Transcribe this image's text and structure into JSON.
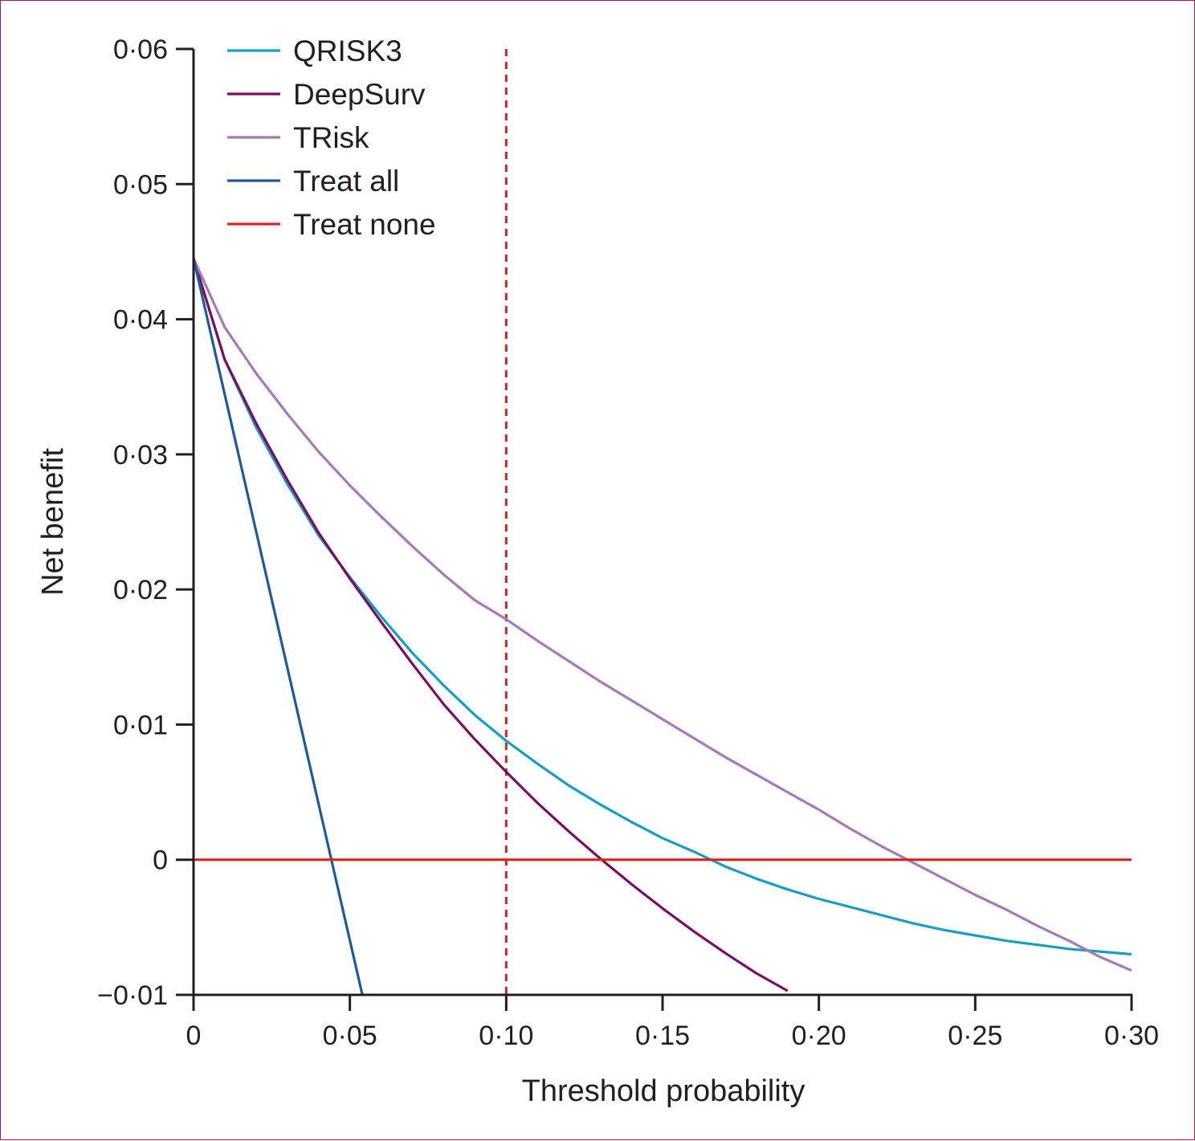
{
  "chart_data": {
    "type": "line",
    "xlabel": "Threshold probability",
    "ylabel": "Net benefit",
    "xlim": [
      0,
      0.3
    ],
    "ylim": [
      -0.01,
      0.06
    ],
    "x_ticks": [
      {
        "value": 0,
        "label": "0"
      },
      {
        "value": 0.05,
        "label": "0·05"
      },
      {
        "value": 0.1,
        "label": "0·10"
      },
      {
        "value": 0.15,
        "label": "0·15"
      },
      {
        "value": 0.2,
        "label": "0·20"
      },
      {
        "value": 0.25,
        "label": "0·25"
      },
      {
        "value": 0.3,
        "label": "0·30"
      }
    ],
    "y_ticks": [
      {
        "value": -0.01,
        "label": "−0·01"
      },
      {
        "value": 0,
        "label": "0"
      },
      {
        "value": 0.01,
        "label": "0·01"
      },
      {
        "value": 0.02,
        "label": "0·02"
      },
      {
        "value": 0.03,
        "label": "0·03"
      },
      {
        "value": 0.04,
        "label": "0·04"
      },
      {
        "value": 0.05,
        "label": "0·05"
      },
      {
        "value": 0.06,
        "label": "0·06"
      }
    ],
    "grid": false,
    "legend_position": "top-left",
    "reference_line": {
      "orientation": "vertical",
      "x": 0.1,
      "style": "dashed",
      "color": "#c8281e"
    },
    "series": [
      {
        "name": "QRISK3",
        "color": "#1a9dc4",
        "x": [
          0,
          0.01,
          0.02,
          0.03,
          0.04,
          0.05,
          0.06,
          0.07,
          0.08,
          0.09,
          0.1,
          0.11,
          0.12,
          0.13,
          0.14,
          0.15,
          0.16,
          0.17,
          0.18,
          0.19,
          0.2,
          0.21,
          0.22,
          0.23,
          0.24,
          0.25,
          0.26,
          0.27,
          0.28,
          0.29,
          0.3
        ],
        "y": [
          0.0445,
          0.037,
          0.032,
          0.0278,
          0.024,
          0.0209,
          0.018,
          0.0153,
          0.0129,
          0.0107,
          0.0088,
          0.0071,
          0.0055,
          0.0041,
          0.0028,
          0.0016,
          0.0006,
          -0.0005,
          -0.0014,
          -0.0022,
          -0.0029,
          -0.0035,
          -0.0041,
          -0.0047,
          -0.0052,
          -0.0056,
          -0.006,
          -0.0063,
          -0.0066,
          -0.0068,
          -0.007
        ]
      },
      {
        "name": "DeepSurv",
        "color": "#7b0f5e",
        "x": [
          0,
          0.01,
          0.02,
          0.03,
          0.04,
          0.05,
          0.06,
          0.07,
          0.08,
          0.09,
          0.1,
          0.11,
          0.12,
          0.13,
          0.14,
          0.15,
          0.16,
          0.17,
          0.18,
          0.19
        ],
        "y": [
          0.0445,
          0.037,
          0.0323,
          0.0281,
          0.0242,
          0.0208,
          0.0176,
          0.0145,
          0.0115,
          0.0089,
          0.0065,
          0.0042,
          0.0021,
          0.0001,
          -0.0018,
          -0.0036,
          -0.0053,
          -0.0069,
          -0.0084,
          -0.0097
        ]
      },
      {
        "name": "TRisk",
        "color": "#a57ab8",
        "x": [
          0,
          0.01,
          0.02,
          0.03,
          0.04,
          0.05,
          0.06,
          0.07,
          0.08,
          0.09,
          0.1,
          0.11,
          0.12,
          0.13,
          0.14,
          0.15,
          0.16,
          0.17,
          0.18,
          0.19,
          0.2,
          0.21,
          0.22,
          0.23,
          0.24,
          0.25,
          0.26,
          0.27,
          0.28,
          0.29,
          0.3
        ],
        "y": [
          0.0445,
          0.0394,
          0.036,
          0.033,
          0.0302,
          0.0277,
          0.0254,
          0.0232,
          0.0211,
          0.0192,
          0.0178,
          0.0162,
          0.0147,
          0.0132,
          0.0118,
          0.0104,
          0.009,
          0.0076,
          0.0063,
          0.005,
          0.0037,
          0.0023,
          0.001,
          -0.0002,
          -0.0014,
          -0.0026,
          -0.0037,
          -0.0049,
          -0.006,
          -0.0072,
          -0.0082
        ]
      },
      {
        "name": "Treat all",
        "color": "#1f5a96",
        "x": [
          0,
          0.054
        ],
        "y": [
          0.0445,
          -0.01
        ]
      },
      {
        "name": "Treat none",
        "color": "#d9261c",
        "x": [
          0,
          0.3
        ],
        "y": [
          0,
          0
        ]
      }
    ]
  }
}
